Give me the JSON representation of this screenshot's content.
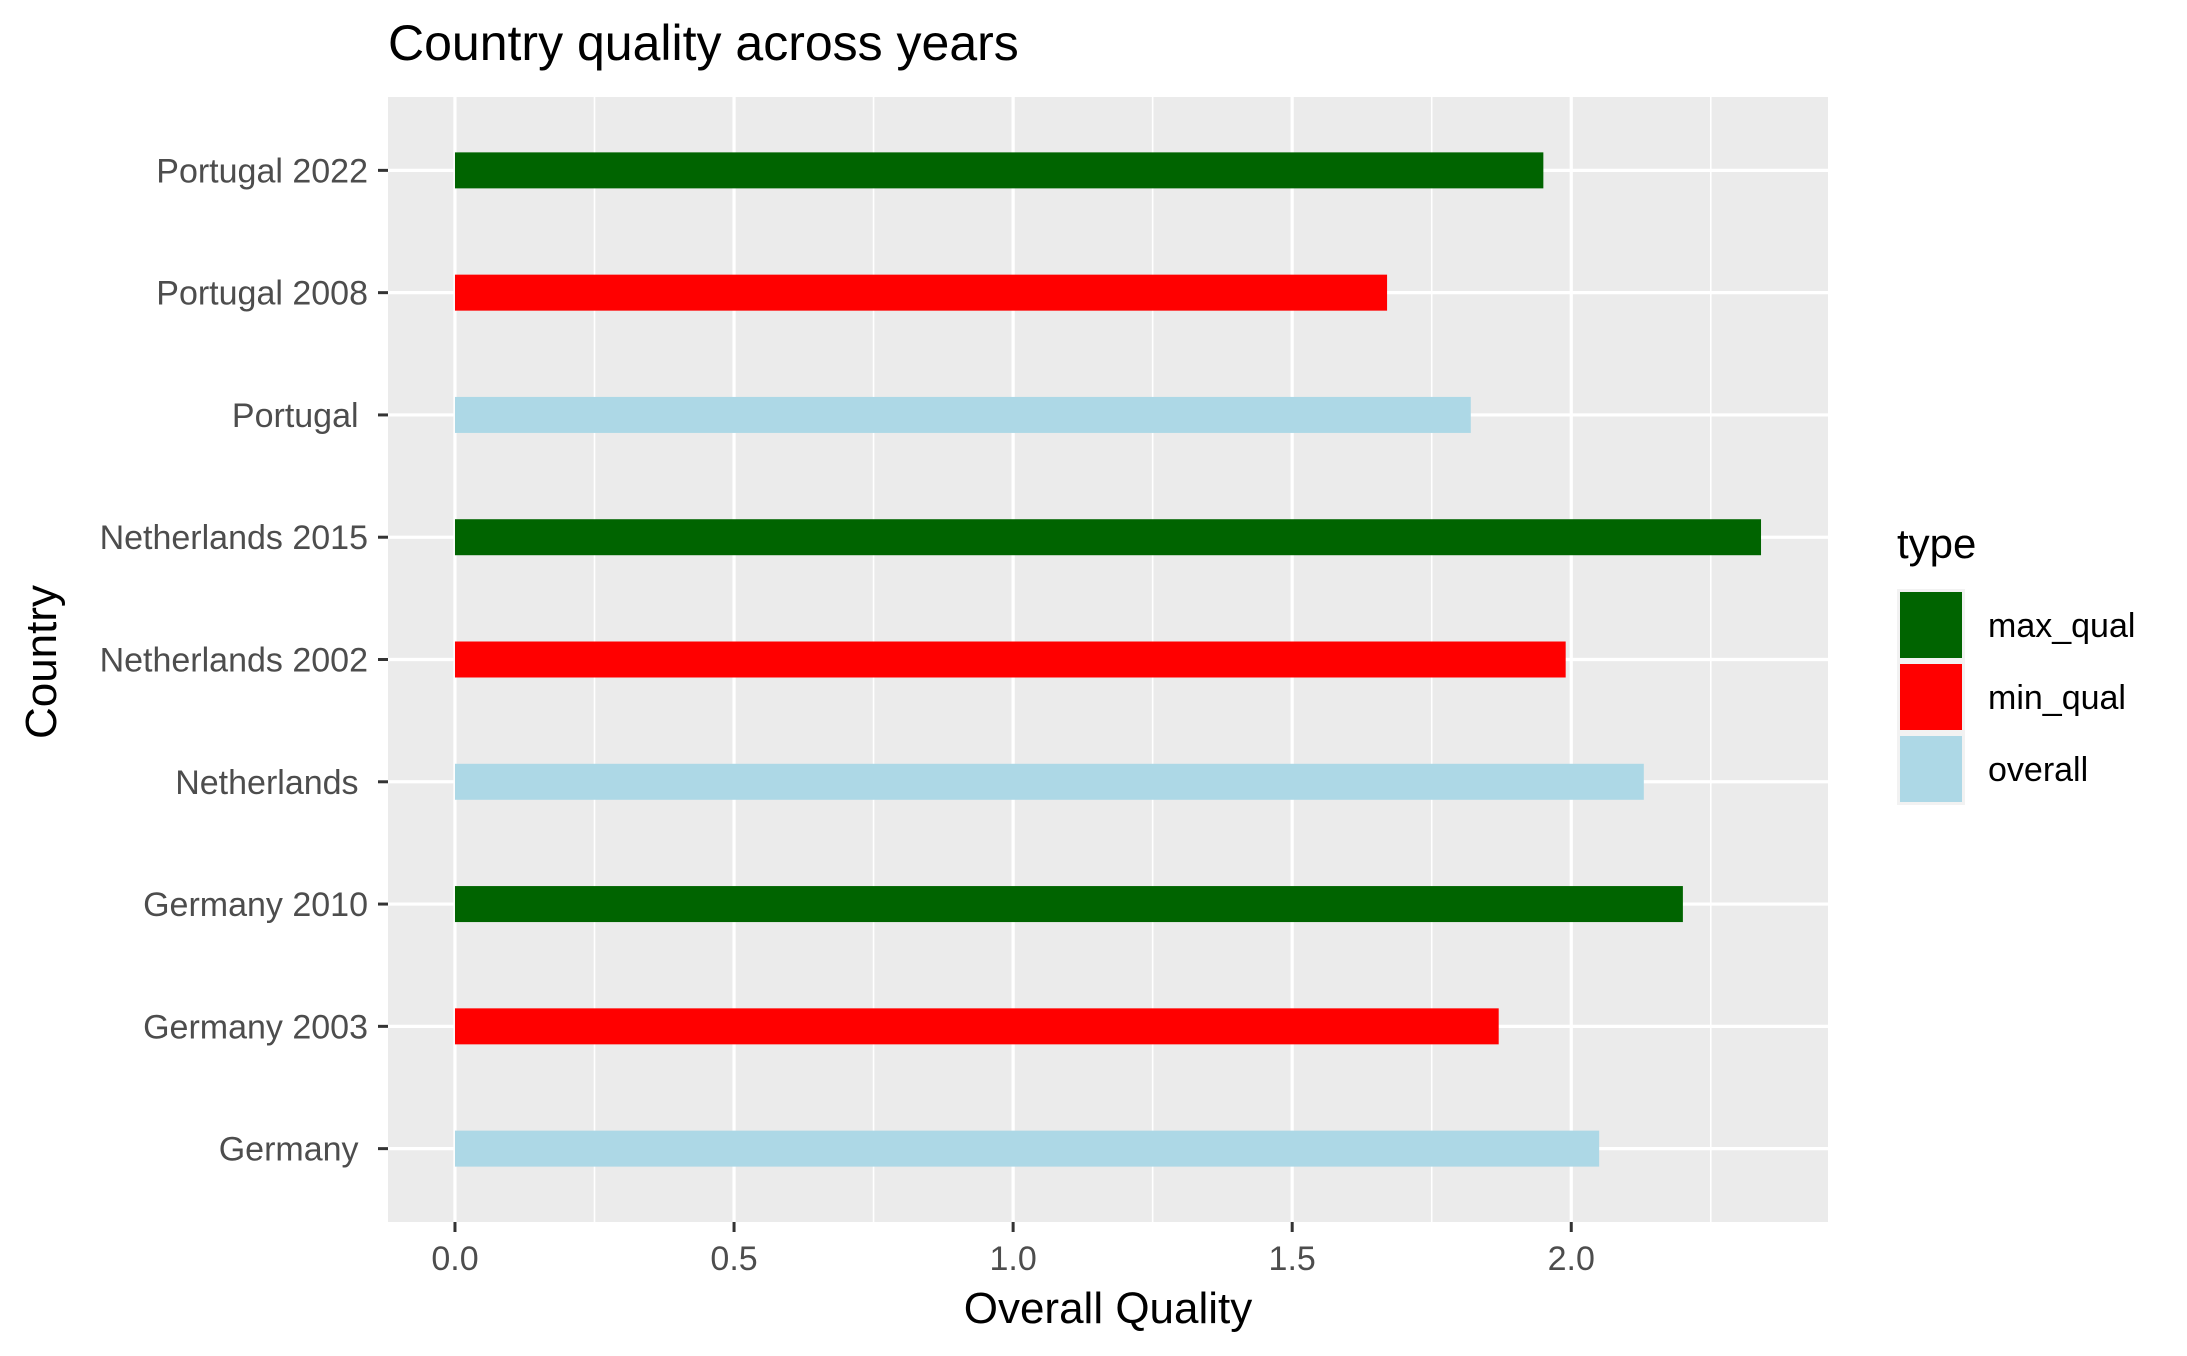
{
  "chart_data": {
    "type": "bar",
    "orientation": "horizontal",
    "title": "Country quality across years",
    "xlabel": "Overall Quality",
    "ylabel": "Country",
    "xlim": [
      -0.12,
      2.46
    ],
    "x_ticks": [
      0.0,
      0.5,
      1.0,
      1.5,
      2.0
    ],
    "x_tick_labels": [
      "0.0",
      "0.5",
      "1.0",
      "1.5",
      "2.0"
    ],
    "grid": true,
    "legend": {
      "title": "type",
      "position": "right",
      "entries": [
        {
          "label": "max_qual",
          "color": "#006400"
        },
        {
          "label": "min_qual",
          "color": "#FF0000"
        },
        {
          "label": "overall",
          "color": "#ADD8E6"
        }
      ]
    },
    "categories": [
      "Portugal 2022",
      "Portugal 2008",
      "Portugal ",
      "Netherlands 2015",
      "Netherlands 2002",
      "Netherlands ",
      "Germany 2010",
      "Germany 2003",
      "Germany "
    ],
    "values": [
      1.95,
      1.67,
      1.82,
      2.34,
      1.99,
      2.13,
      2.2,
      1.87,
      2.05
    ],
    "types": [
      "max_qual",
      "min_qual",
      "overall",
      "max_qual",
      "min_qual",
      "overall",
      "max_qual",
      "min_qual",
      "overall"
    ],
    "colors": {
      "max_qual": "#006400",
      "min_qual": "#FF0000",
      "overall": "#ADD8E6",
      "panel": "#EBEBEB",
      "grid": "#FFFFFF"
    }
  }
}
